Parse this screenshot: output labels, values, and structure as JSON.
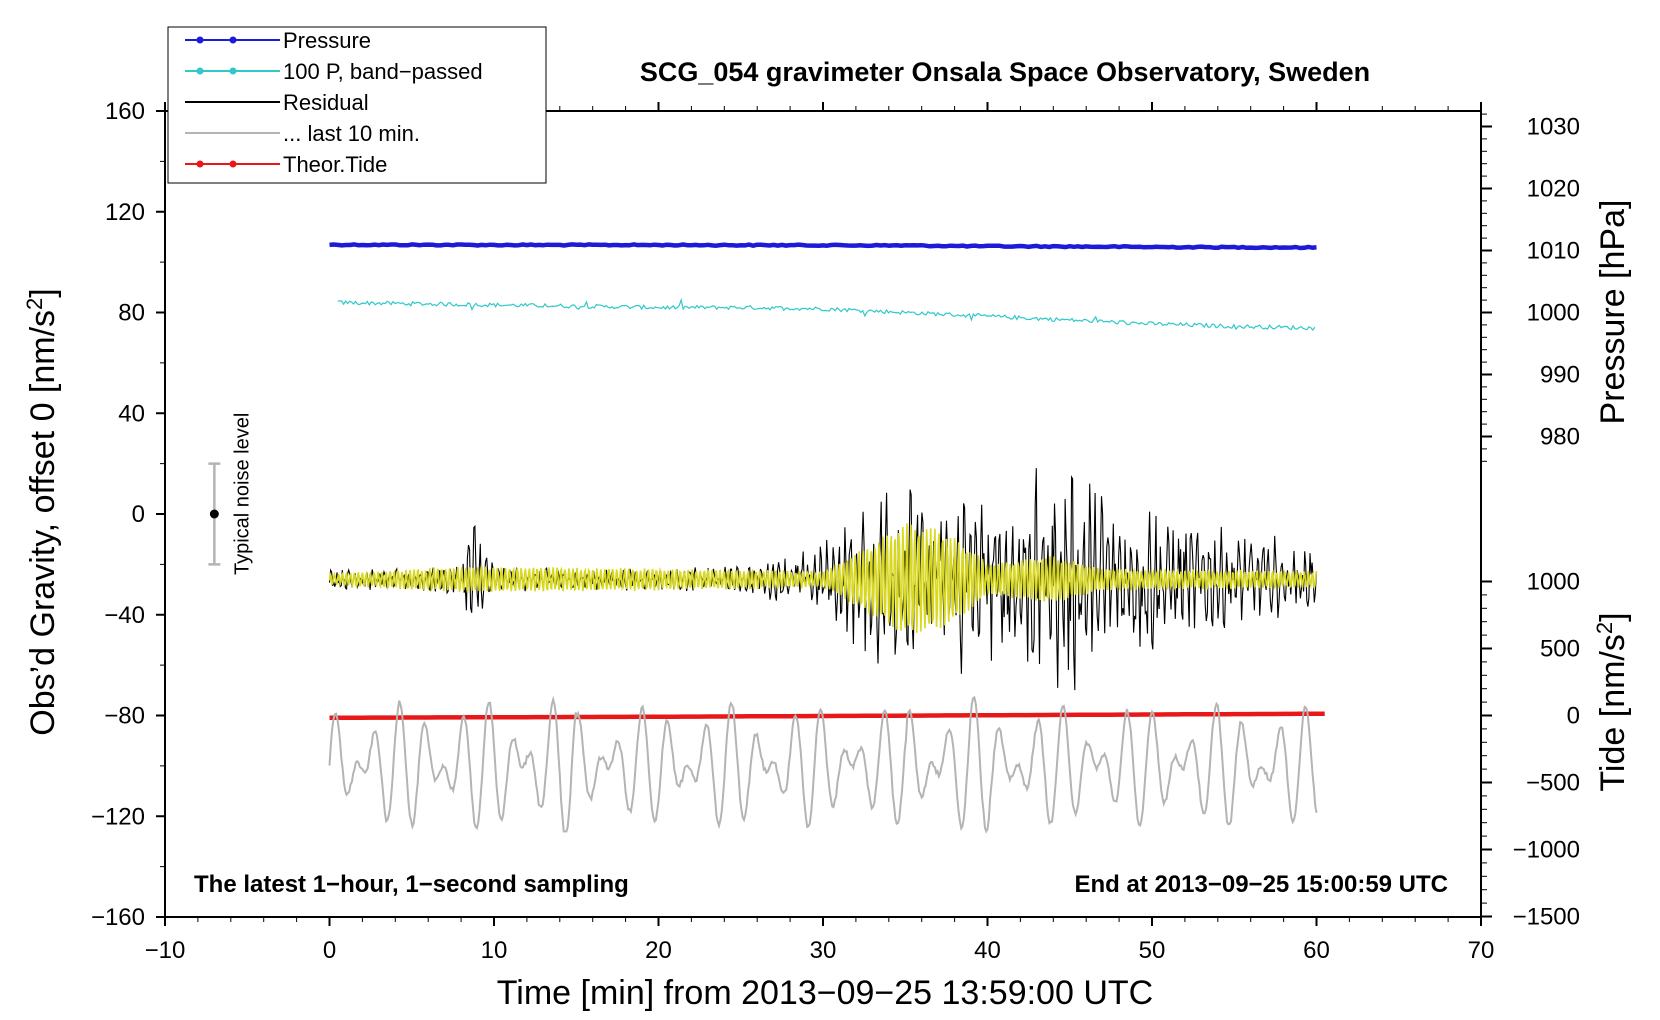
{
  "chart_data": {
    "type": "line",
    "title": "SCG_054 gravimeter Onsala Space Observatory, Sweden",
    "xlabel": "Time [min] from 2013−09−25 13:59:00 UTC",
    "ylabel": "Obs’d Gravity, offset 0 [nm/s",
    "ylabel_sup": "2",
    "ylabel_end": "]",
    "xlim": [
      -10,
      70
    ],
    "ylim": [
      -160,
      160
    ],
    "x_ticks": [
      -10,
      0,
      10,
      20,
      30,
      40,
      50,
      60,
      70
    ],
    "x_tick_labels": [
      "−10",
      "0",
      "10",
      "20",
      "30",
      "40",
      "50",
      "60",
      "70"
    ],
    "y_ticks": [
      -160,
      -120,
      -80,
      -40,
      0,
      40,
      80,
      120,
      160
    ],
    "y_tick_labels": [
      "−160",
      "−120",
      "−80",
      "−40",
      "0",
      "40",
      "80",
      "120",
      "160"
    ],
    "pressure_axis": {
      "label": "Pressure [hPa]",
      "ticks": [
        980,
        990,
        1000,
        1010,
        1020,
        1030
      ],
      "tick_labels": [
        "980",
        "990",
        "1000",
        "1010",
        "1020",
        "1030"
      ]
    },
    "tide_axis": {
      "label": "Tide [nm/s",
      "label_sup": "2",
      "label_end": "]",
      "ticks": [
        -1500,
        -1000,
        -500,
        0,
        500,
        1000
      ],
      "tick_labels": [
        "−1500",
        "−1000",
        "−500",
        "0",
        "500",
        "1000"
      ]
    },
    "legend": {
      "placement": "top-left",
      "entries": [
        {
          "label": "Pressure",
          "color": "#1c1cd8",
          "marker": true
        },
        {
          "label": "100 P, band−passed",
          "color": "#30c8c8",
          "marker": true
        },
        {
          "label": "Residual",
          "color": "#000000",
          "marker": false
        },
        {
          "label": "... last 10 min.",
          "color": "#b4b4b4",
          "marker": false
        },
        {
          "label": "Theor.Tide",
          "color": "#e81818",
          "marker": true
        }
      ]
    },
    "series": [
      {
        "name": "Pressure",
        "color": "#1c1cd8",
        "x": [
          0,
          10,
          20,
          30,
          35,
          40,
          45,
          50,
          55,
          60
        ],
        "y": [
          106.9,
          106.8,
          106.8,
          106.7,
          106.6,
          106.3,
          106.2,
          106.0,
          105.9,
          105.8
        ]
      },
      {
        "name": "100 P, band−passed",
        "color": "#30c8c8",
        "x": [
          0,
          5,
          10,
          15,
          20,
          25,
          30,
          35,
          40,
          45,
          50,
          55,
          60
        ],
        "y": [
          84.0,
          83.5,
          83.0,
          82.5,
          82.0,
          82.0,
          81.5,
          80.0,
          78.5,
          77.0,
          75.5,
          74.5,
          73.8
        ]
      },
      {
        "name": "Residual envelope (half−amplitude around −26)",
        "color": "#000000",
        "x": [
          0,
          5,
          8,
          8.7,
          10,
          15,
          20,
          25,
          28,
          30,
          32,
          34,
          36,
          38,
          40,
          42,
          44,
          46,
          48,
          50,
          52,
          55,
          58,
          60
        ],
        "y": [
          4,
          4,
          6,
          26,
          5,
          4,
          4,
          5,
          9,
          14,
          26,
          38,
          36,
          42,
          32,
          34,
          50,
          40,
          28,
          30,
          22,
          18,
          16,
          14
        ]
      },
      {
        "name": "Residual filtered (yellow)",
        "color": "#d8d820",
        "x": [
          0,
          8.7,
          30,
          33,
          35,
          37,
          39,
          40,
          44,
          47,
          60
        ],
        "y": [
          2,
          5,
          3,
          14,
          22,
          20,
          12,
          6,
          9,
          4,
          3
        ]
      },
      {
        "name": "Theor.Tide",
        "color": "#e81818",
        "x": [
          0,
          10,
          20,
          30,
          40,
          50,
          60.5
        ],
        "y": [
          -80.9,
          -80.7,
          -80.5,
          -80.2,
          -79.9,
          -79.6,
          -79.3
        ]
      },
      {
        "name": "... last 10 min.",
        "color": "#b4b4b4",
        "x_range": [
          0,
          60
        ],
        "baseline": -100,
        "min": -126,
        "max": -69
      }
    ],
    "noise_bar": {
      "label": "Typical noise level",
      "x": -7,
      "y": 0,
      "low": -20,
      "high": 20
    },
    "annotations": {
      "left": "The latest 1−hour, 1−second sampling",
      "right": "End at 2013−09−25 15:00:59 UTC"
    }
  }
}
